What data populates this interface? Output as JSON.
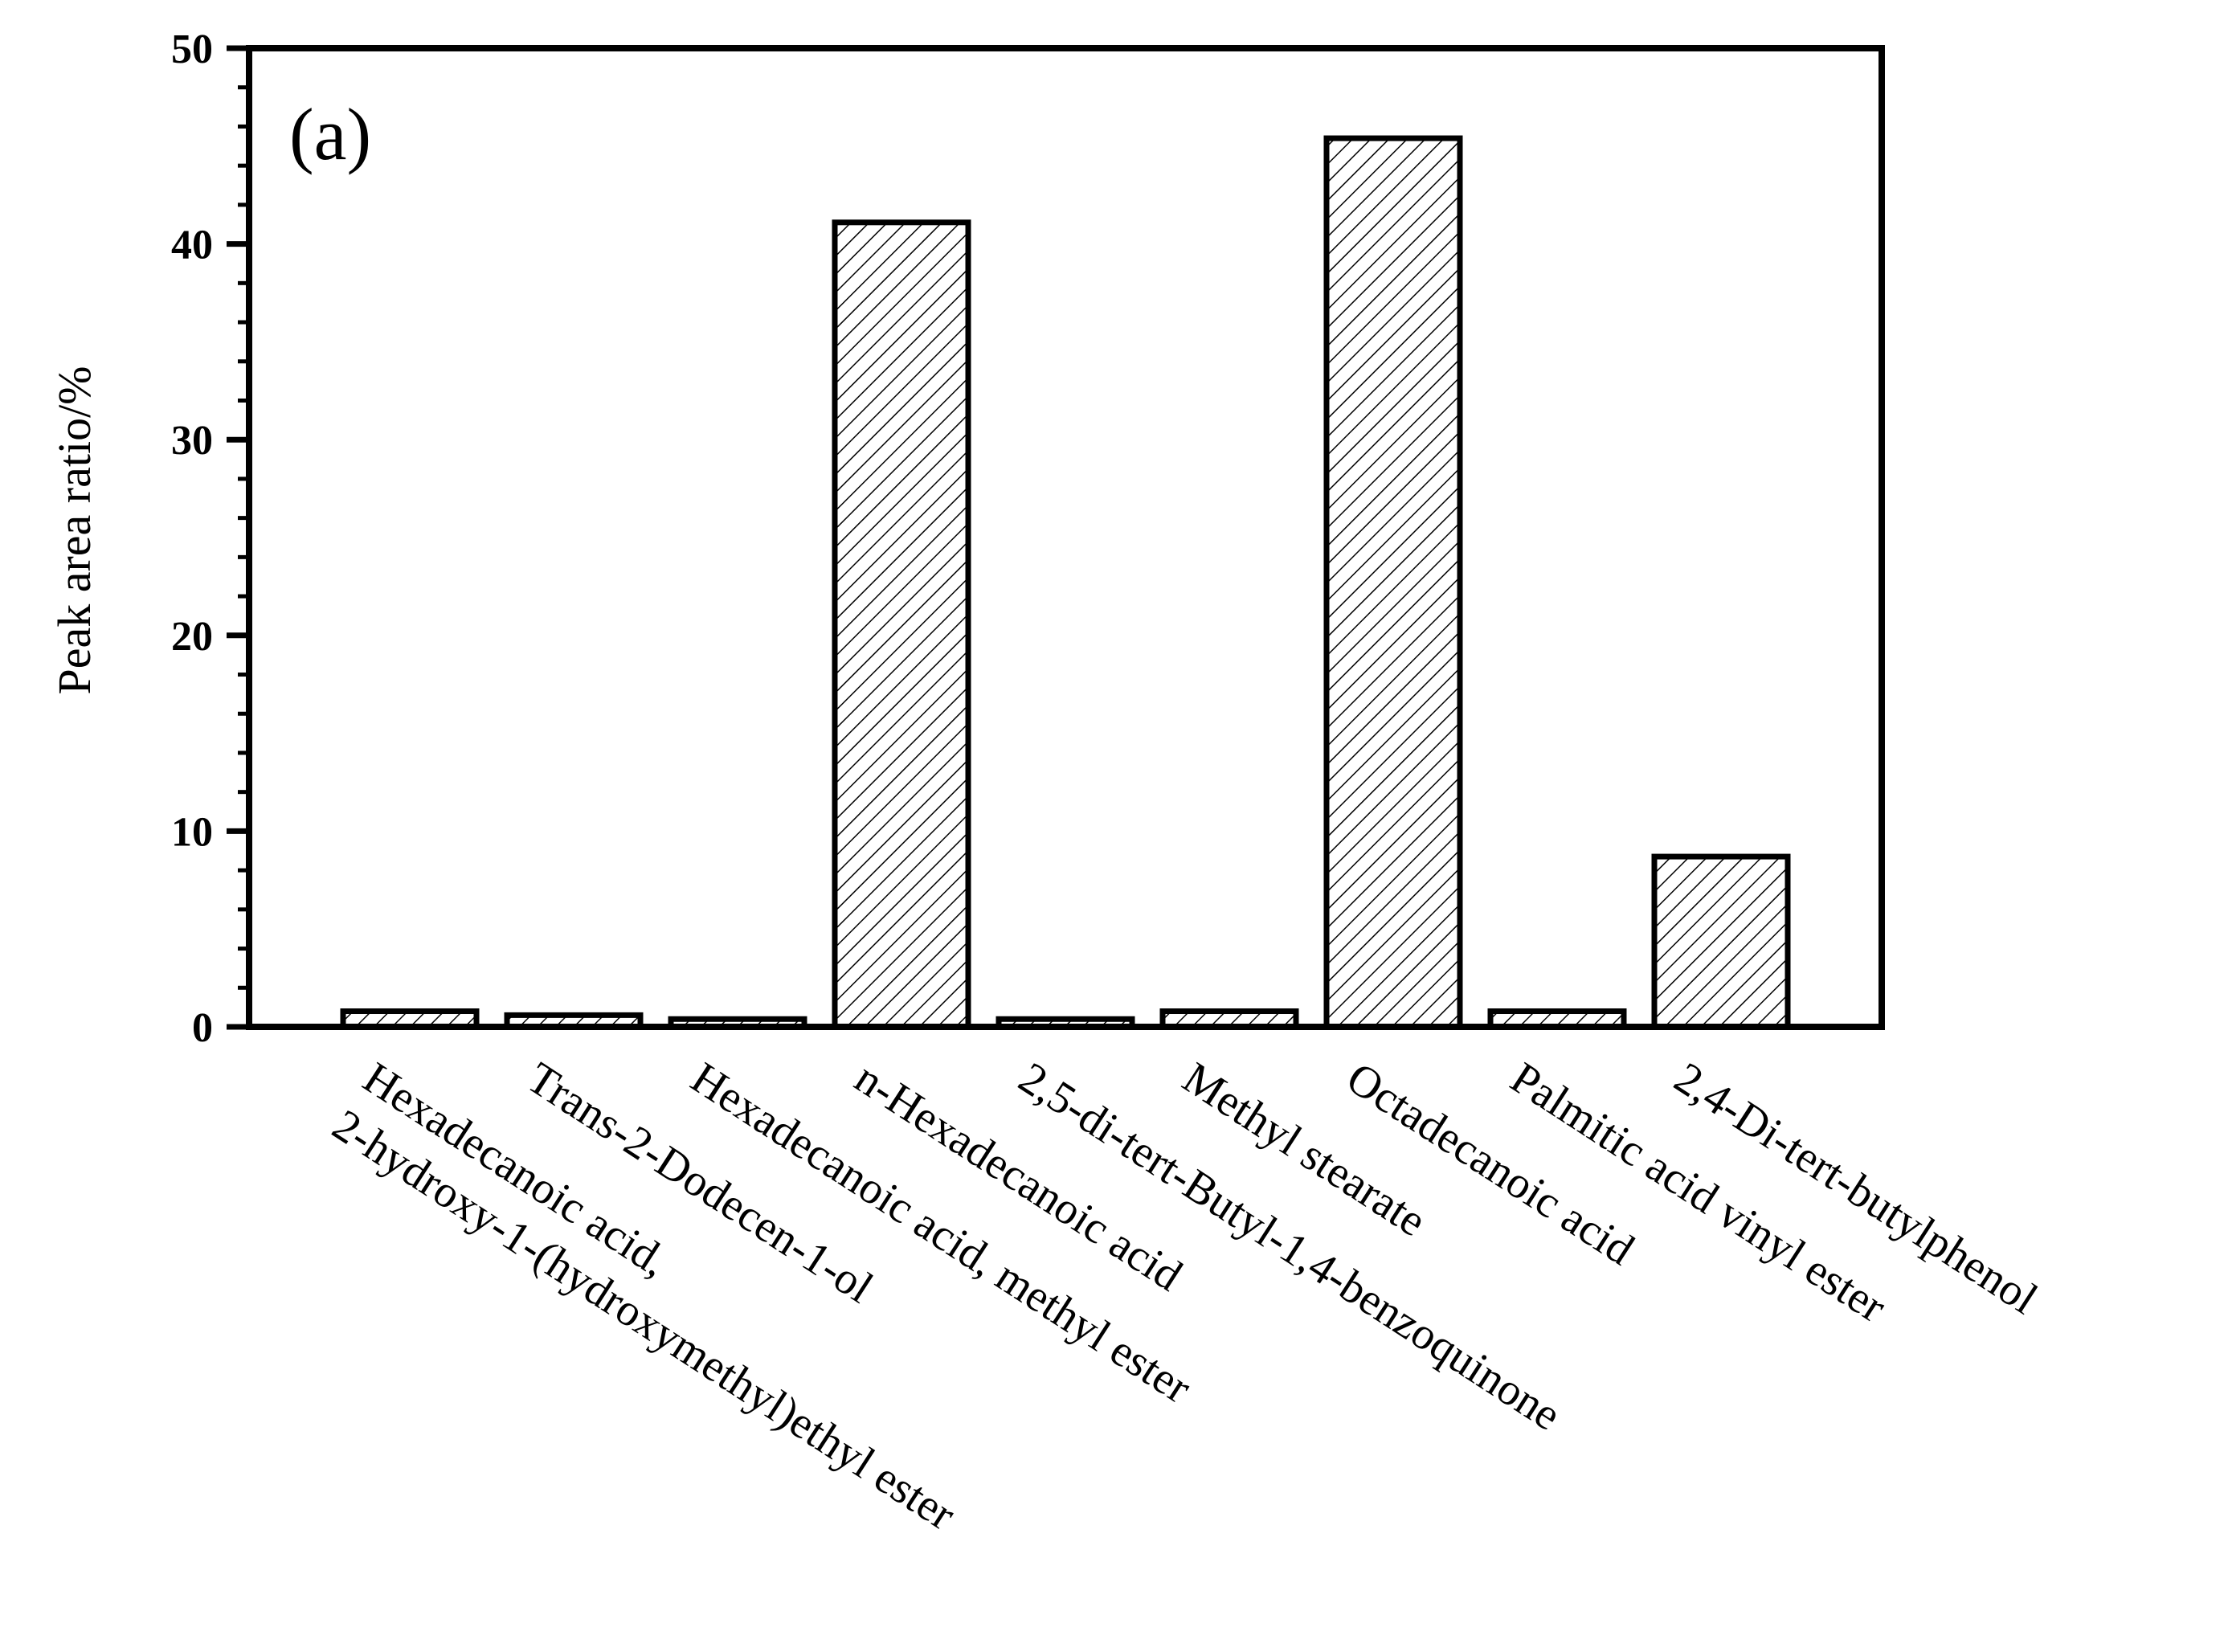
{
  "chart_data": {
    "type": "bar",
    "panel_label": "(a)",
    "xlabel": "",
    "ylabel": "Peak area ratio/%",
    "ylim": [
      0,
      50
    ],
    "yticks": [
      0,
      10,
      20,
      30,
      40,
      50
    ],
    "grid": false,
    "legend": "none",
    "bar_fill": "hatched",
    "categories": [
      {
        "lines": [
          "Hexadecanoic acid,",
          "2-hydroxy-1-(hydroxymethyl)ethyl ester"
        ]
      },
      {
        "lines": [
          "Trans-2-Dodecen-1-ol"
        ]
      },
      {
        "lines": [
          "Hexadecanoic acid, methyl ester"
        ]
      },
      {
        "lines": [
          "n-Hexadecanoic acid"
        ]
      },
      {
        "lines": [
          "2,5-di-tert-Butyl-1,4-benzoquinone"
        ]
      },
      {
        "lines": [
          "Methyl stearate"
        ]
      },
      {
        "lines": [
          "Octadecanoic acid"
        ]
      },
      {
        "lines": [
          "Palmitic acid vinyl ester"
        ]
      },
      {
        "lines": [
          "2,4-Di-tert-butylphenol"
        ]
      }
    ],
    "values": [
      0.8,
      0.6,
      0.4,
      41.1,
      0.4,
      0.8,
      45.4,
      0.8,
      8.7
    ],
    "colors": {
      "bar_stroke": "#000000",
      "hatch": "#000000",
      "background": "#ffffff"
    }
  }
}
